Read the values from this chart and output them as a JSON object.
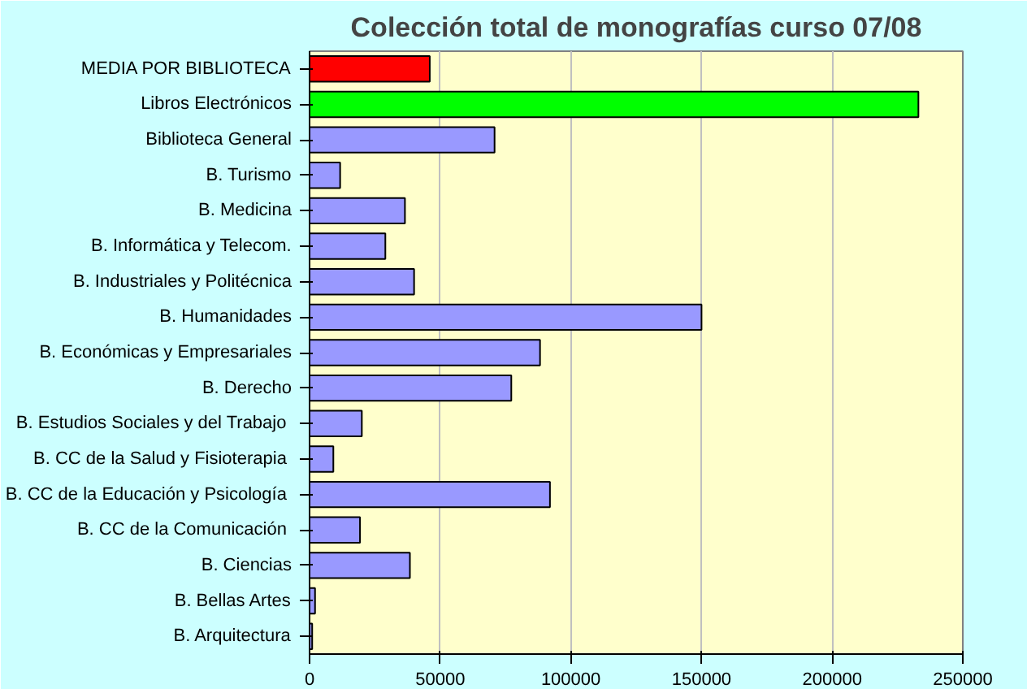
{
  "chart_data": {
    "type": "bar",
    "orientation": "horizontal",
    "title": "Colección total de monografías curso 07/08",
    "categories": [
      "MEDIA POR BIBLIOTECA",
      "Libros Electrónicos",
      "Biblioteca General",
      "B. Turismo",
      "B. Medicina",
      "B. Informática y Telecom.",
      "B. Industriales y Politécnica",
      "B. Humanidades",
      "B. Económicas y Empresariales",
      "B. Derecho",
      "B. Estudios Sociales y  del Trabajo",
      "B. CC  de la Salud y Fisioterapia",
      "B. CC  de la Educación y Psicología",
      "B. CC  de la Comunicación",
      "B. Ciencias",
      "B. Bellas Artes",
      "B. Arquitectura"
    ],
    "values": [
      46000,
      233000,
      70800,
      11700,
      36500,
      29000,
      40000,
      150000,
      88200,
      77200,
      20000,
      9100,
      92000,
      19300,
      38400,
      2100,
      1000
    ],
    "colors": [
      "#ff0000",
      "#00ff00",
      "#9999ff",
      "#9999ff",
      "#9999ff",
      "#9999ff",
      "#9999ff",
      "#9999ff",
      "#9999ff",
      "#9999ff",
      "#9999ff",
      "#9999ff",
      "#9999ff",
      "#9999ff",
      "#9999ff",
      "#9999ff",
      "#9999ff"
    ],
    "xlim": [
      0,
      250000
    ],
    "xticks": [
      0,
      50000,
      100000,
      150000,
      200000,
      250000
    ],
    "grid": "x"
  }
}
